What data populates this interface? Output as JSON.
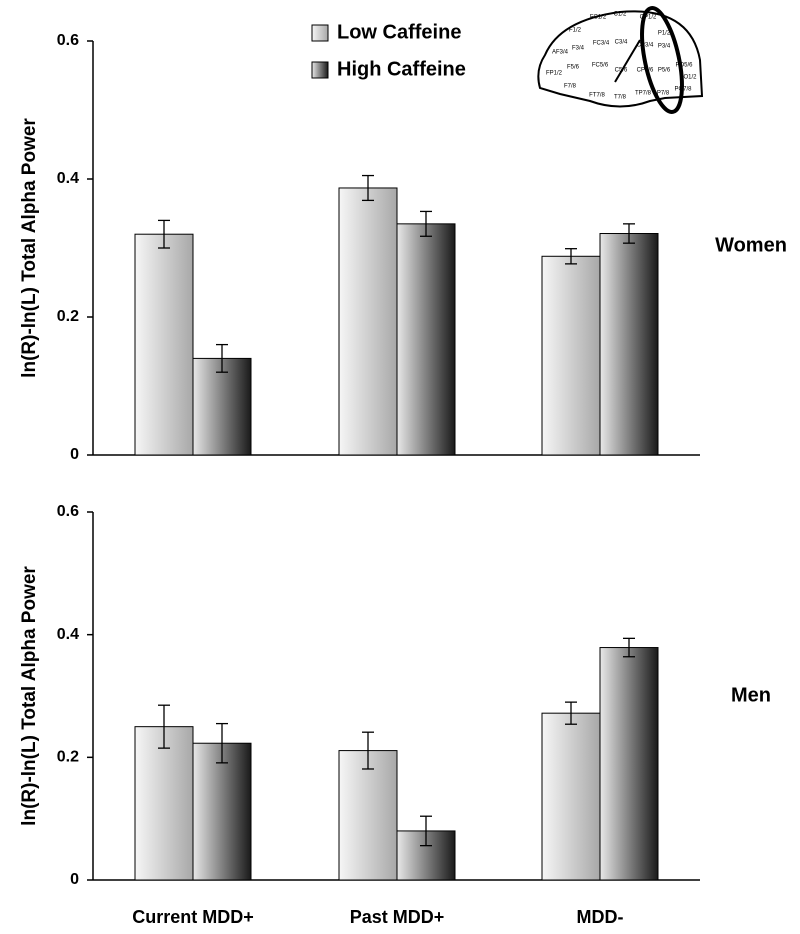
{
  "chart_data": [
    {
      "type": "bar",
      "y_label": "ln(R)-ln(L) Total Alpha Power",
      "panel_label": "Women",
      "legend": "top",
      "categories": [
        null,
        null,
        null
      ],
      "series": [
        {
          "name": "Low Caffeine",
          "color": "#a8a8a8",
          "values": [
            0.32,
            0.387,
            0.288
          ],
          "errors": [
            0.02,
            0.018,
            0.011
          ]
        },
        {
          "name": "High Caffeine",
          "color": "#1a1a1a",
          "values": [
            0.14,
            0.335,
            0.321
          ],
          "errors": [
            0.02,
            0.018,
            0.014
          ]
        }
      ],
      "ylim": [
        0,
        0.6
      ],
      "yticks": [
        0,
        0.2,
        0.4,
        0.6
      ]
    },
    {
      "type": "bar",
      "y_label": "ln(R)-ln(L) Total Alpha Power",
      "panel_label": "Men",
      "categories": [
        "Current MDD+",
        "Past MDD+",
        "MDD-"
      ],
      "series": [
        {
          "color": "#a8a8a8",
          "values": [
            0.25,
            0.211,
            0.272
          ],
          "errors": [
            0.035,
            0.03,
            0.018
          ]
        },
        {
          "color": "#1a1a1a",
          "values": [
            0.223,
            0.08,
            0.379
          ],
          "errors": [
            0.032,
            0.024,
            0.015
          ]
        }
      ],
      "ylim": [
        0,
        0.6
      ],
      "yticks": [
        0,
        0.2,
        0.4,
        0.6
      ]
    }
  ],
  "inset": {
    "electrodes": [
      "FC1/2",
      "C1/2",
      "CP1/2",
      "F1/2",
      "FC3/4",
      "C3/4",
      "CP3/4",
      "P1/2",
      "AF3/4",
      "F3/4",
      "P3/4",
      "F5/6",
      "FC5/6",
      "C5/6",
      "CP5/6",
      "P5/6",
      "PO5/6",
      "FP1/2",
      "O1/2",
      "F7/8",
      "FT7/8",
      "T7/8",
      "TP7/8",
      "P7/8",
      "PO7/8"
    ]
  }
}
